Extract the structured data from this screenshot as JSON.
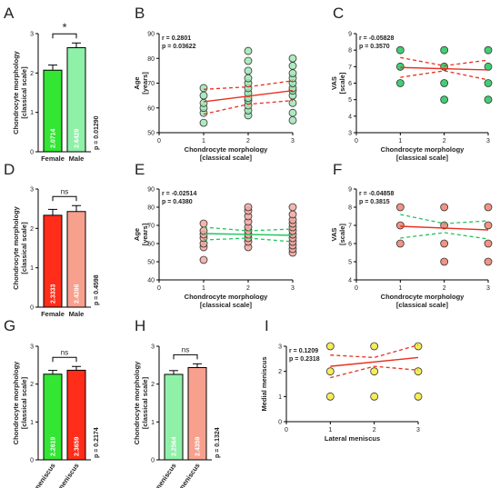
{
  "panel_labels": [
    "A",
    "B",
    "C",
    "D",
    "E",
    "F",
    "G",
    "H",
    "I"
  ],
  "chart_data": [
    {
      "panel": "A",
      "type": "bar",
      "categories": [
        "Female",
        "Male"
      ],
      "values": [
        2.0714,
        2.6429
      ],
      "value_labels": [
        "2.0714",
        "2.6429"
      ],
      "errors": [
        0.13,
        0.12
      ],
      "colors": [
        "#33e633",
        "#8ff0a8"
      ],
      "ylabel": [
        "Chondrocyte morphology",
        "[classical scale]"
      ],
      "ylim": [
        0,
        3
      ],
      "yticks": [
        0,
        1,
        2,
        3
      ],
      "pvalue": "p = 0.01290",
      "sig": "*"
    },
    {
      "panel": "B",
      "type": "scatter",
      "xlabel": [
        "Chondrocyte morphology",
        "[classical scale]"
      ],
      "ylabel": [
        "Age",
        "[years]"
      ],
      "xlim": [
        0,
        3
      ],
      "xticks": [
        0,
        1,
        2,
        3
      ],
      "ylim": [
        50,
        90
      ],
      "yticks": [
        50,
        60,
        70,
        80,
        90
      ],
      "r": "r = 0.2801",
      "p": "p = 0.03622",
      "point_color": "#9fe6b4",
      "line_color": "#e8301e",
      "band_color": "#e8301e",
      "points": [
        [
          1,
          54
        ],
        [
          1,
          58
        ],
        [
          1,
          60
        ],
        [
          1,
          62
        ],
        [
          1,
          65
        ],
        [
          1,
          68
        ],
        [
          2,
          57
        ],
        [
          2,
          59
        ],
        [
          2,
          61
        ],
        [
          2,
          63
        ],
        [
          2,
          64
        ],
        [
          2,
          66
        ],
        [
          2,
          68
        ],
        [
          2,
          70
        ],
        [
          2,
          72
        ],
        [
          2,
          75
        ],
        [
          2,
          79
        ],
        [
          2,
          83
        ],
        [
          3,
          55
        ],
        [
          3,
          58
        ],
        [
          3,
          62
        ],
        [
          3,
          65
        ],
        [
          3,
          67
        ],
        [
          3,
          68
        ],
        [
          3,
          70
        ],
        [
          3,
          72
        ],
        [
          3,
          74
        ],
        [
          3,
          77
        ],
        [
          3,
          80
        ]
      ],
      "fit": {
        "x": [
          1,
          3
        ],
        "y": [
          62.5,
          67
        ]
      },
      "band_upper": [
        [
          1,
          67.5
        ],
        [
          2,
          68.5
        ],
        [
          3,
          71
        ]
      ],
      "band_lower": [
        [
          1,
          57.5
        ],
        [
          2,
          61.5
        ],
        [
          3,
          63
        ]
      ]
    },
    {
      "panel": "C",
      "type": "scatter",
      "xlabel": [
        "Chondrocyte morphology",
        "[classical scale]"
      ],
      "ylabel": [
        "VAS",
        "[scale]"
      ],
      "xlim": [
        0,
        3
      ],
      "xticks": [
        0,
        1,
        2,
        3
      ],
      "ylim": [
        3,
        9
      ],
      "yticks": [
        3,
        4,
        5,
        6,
        7,
        8,
        9
      ],
      "r": "r = -0.05828",
      "p": "p = 0.3570",
      "point_color": "#22c55e",
      "line_color": "#e8301e",
      "band_color": "#e8301e",
      "points": [
        [
          1,
          6
        ],
        [
          1,
          7
        ],
        [
          1,
          8
        ],
        [
          2,
          5
        ],
        [
          2,
          6
        ],
        [
          2,
          7
        ],
        [
          2,
          8
        ],
        [
          3,
          5
        ],
        [
          3,
          6
        ],
        [
          3,
          7
        ],
        [
          3,
          8
        ]
      ],
      "fit": {
        "x": [
          1,
          3
        ],
        "y": [
          6.95,
          6.8
        ]
      },
      "band_upper": [
        [
          1,
          7.55
        ],
        [
          2,
          7.05
        ],
        [
          3,
          7.4
        ]
      ],
      "band_lower": [
        [
          1,
          6.35
        ],
        [
          2,
          6.75
        ],
        [
          3,
          6.2
        ]
      ]
    },
    {
      "panel": "D",
      "type": "bar",
      "categories": [
        "Female",
        "Male"
      ],
      "values": [
        2.3333,
        2.4286
      ],
      "value_labels": [
        "2.3333",
        "2.4286"
      ],
      "errors": [
        0.15,
        0.15
      ],
      "colors": [
        "#ff2d1a",
        "#f7a08e"
      ],
      "ylabel": [
        "Chondrocyte morphology",
        "[classical scale]"
      ],
      "ylim": [
        0,
        3
      ],
      "yticks": [
        0,
        1,
        2,
        3
      ],
      "pvalue": "p = 0.4598",
      "sig": "ns"
    },
    {
      "panel": "E",
      "type": "scatter",
      "xlabel": [
        "Chondrocyte morphology",
        "[classical scale]"
      ],
      "ylabel": [
        "Age",
        "[years]"
      ],
      "xlim": [
        0,
        3
      ],
      "xticks": [
        0,
        1,
        2,
        3
      ],
      "ylim": [
        40,
        90
      ],
      "yticks": [
        40,
        50,
        60,
        70,
        80,
        90
      ],
      "r": "r = -0.02514",
      "p": "p = 0.4380",
      "point_color": "#f2a8a0",
      "line_color": "#22c55e",
      "band_color": "#22c55e",
      "points": [
        [
          1,
          51
        ],
        [
          1,
          58
        ],
        [
          1,
          60
        ],
        [
          1,
          63
        ],
        [
          1,
          65
        ],
        [
          1,
          67
        ],
        [
          1,
          71
        ],
        [
          2,
          58
        ],
        [
          2,
          61
        ],
        [
          2,
          63
        ],
        [
          2,
          65
        ],
        [
          2,
          67
        ],
        [
          2,
          69
        ],
        [
          2,
          72
        ],
        [
          2,
          75
        ],
        [
          2,
          78
        ],
        [
          2,
          80
        ],
        [
          3,
          55
        ],
        [
          3,
          57
        ],
        [
          3,
          59
        ],
        [
          3,
          61
        ],
        [
          3,
          63
        ],
        [
          3,
          65
        ],
        [
          3,
          67
        ],
        [
          3,
          69
        ],
        [
          3,
          71
        ],
        [
          3,
          73
        ],
        [
          3,
          76
        ],
        [
          3,
          80
        ]
      ],
      "fit": {
        "x": [
          1,
          3
        ],
        "y": [
          65.5,
          64.5
        ]
      },
      "band_upper": [
        [
          1,
          69
        ],
        [
          2,
          67
        ],
        [
          3,
          68
        ]
      ],
      "band_lower": [
        [
          1,
          62
        ],
        [
          2,
          63
        ],
        [
          3,
          61
        ]
      ]
    },
    {
      "panel": "F",
      "type": "scatter",
      "xlabel": [
        "Chondrocyte morphology",
        "[classical scale]"
      ],
      "ylabel": [
        "VAS",
        "[scale]"
      ],
      "xlim": [
        0,
        3
      ],
      "xticks": [
        0,
        1,
        2,
        3
      ],
      "ylim": [
        4,
        9
      ],
      "yticks": [
        4,
        5,
        6,
        7,
        8,
        9
      ],
      "r": "r = -0.04858",
      "p": "p = 0.3815",
      "point_color": "#f08070",
      "line_color": "#e8301e",
      "band_color": "#22c55e",
      "points": [
        [
          1,
          6
        ],
        [
          1,
          7
        ],
        [
          1,
          8
        ],
        [
          2,
          5
        ],
        [
          2,
          6
        ],
        [
          2,
          7
        ],
        [
          2,
          8
        ],
        [
          3,
          5
        ],
        [
          3,
          6
        ],
        [
          3,
          7
        ],
        [
          3,
          8
        ]
      ],
      "fit": {
        "x": [
          1,
          3
        ],
        "y": [
          6.95,
          6.75
        ]
      },
      "band_upper": [
        [
          1,
          7.6
        ],
        [
          2,
          7.1
        ],
        [
          3,
          7.25
        ]
      ],
      "band_lower": [
        [
          1,
          6.3
        ],
        [
          2,
          6.6
        ],
        [
          3,
          6.25
        ]
      ]
    },
    {
      "panel": "G",
      "type": "bar",
      "categories": [
        "Lateral meniscus",
        "Medial meniscus"
      ],
      "values": [
        2.2619,
        2.3659
      ],
      "value_labels": [
        "2.2619",
        "2.3659"
      ],
      "errors": [
        0.1,
        0.1
      ],
      "colors": [
        "#33e633",
        "#ff2d1a"
      ],
      "ylabel": [
        "Chondrocyte morphology",
        "[classical scale]"
      ],
      "ylim": [
        0,
        3
      ],
      "yticks": [
        0,
        1,
        2,
        3
      ],
      "pvalue": "p = 0.2174",
      "sig": "ns"
    },
    {
      "panel": "H",
      "type": "bar",
      "categories": [
        "Lateral meniscus",
        "Medial meniscus"
      ],
      "values": [
        2.2564,
        2.4359
      ],
      "value_labels": [
        "2.2564",
        "2.4359"
      ],
      "errors": [
        0.1,
        0.1
      ],
      "colors": [
        "#8ff0a8",
        "#f7a08e"
      ],
      "ylabel": [
        "Chondrocyte morphology",
        "[classical scale]"
      ],
      "ylim": [
        0,
        3
      ],
      "yticks": [
        0,
        1,
        2,
        3
      ],
      "pvalue": "p = 0.1324",
      "sig": "ns"
    },
    {
      "panel": "I",
      "type": "scatter",
      "xlabel": [
        "Lateral meniscus"
      ],
      "ylabel": [
        "Medial meniscus"
      ],
      "xlim": [
        0,
        3
      ],
      "xticks": [
        0,
        1,
        2,
        3
      ],
      "ylim": [
        0,
        3
      ],
      "yticks": [
        0,
        1,
        2,
        3
      ],
      "r": "r = 0.1209",
      "p": "p = 0.2318",
      "point_color": "#f5ea3a",
      "line_color": "#e8301e",
      "band_color": "#e8301e",
      "points": [
        [
          1,
          1
        ],
        [
          1,
          2
        ],
        [
          1,
          3
        ],
        [
          2,
          1
        ],
        [
          2,
          2
        ],
        [
          2,
          3
        ],
        [
          3,
          1
        ],
        [
          3,
          2
        ],
        [
          3,
          3
        ]
      ],
      "fit": {
        "x": [
          1,
          3
        ],
        "y": [
          2.2,
          2.55
        ]
      },
      "band_upper": [
        [
          1,
          2.65
        ],
        [
          2,
          2.55
        ],
        [
          3,
          3.05
        ]
      ],
      "band_lower": [
        [
          1,
          1.75
        ],
        [
          2,
          2.2
        ],
        [
          3,
          2.05
        ]
      ]
    }
  ]
}
